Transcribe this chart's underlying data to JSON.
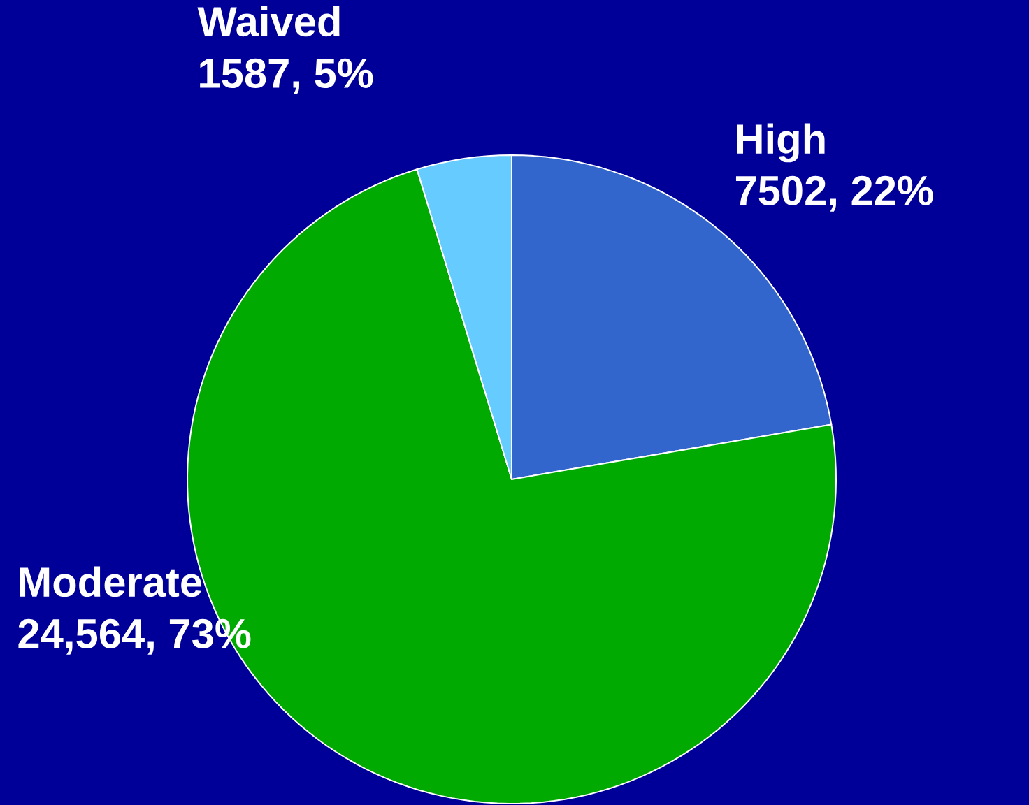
{
  "chart_data": {
    "type": "pie",
    "categories": [
      "High",
      "Moderate",
      "Waived"
    ],
    "values": [
      7502,
      24564,
      1587
    ],
    "value_labels": [
      "7502, 22%",
      "24,564, 73%",
      "1587, 5%"
    ],
    "colors": [
      "#3366cc",
      "#00aa00",
      "#66ccff"
    ]
  }
}
